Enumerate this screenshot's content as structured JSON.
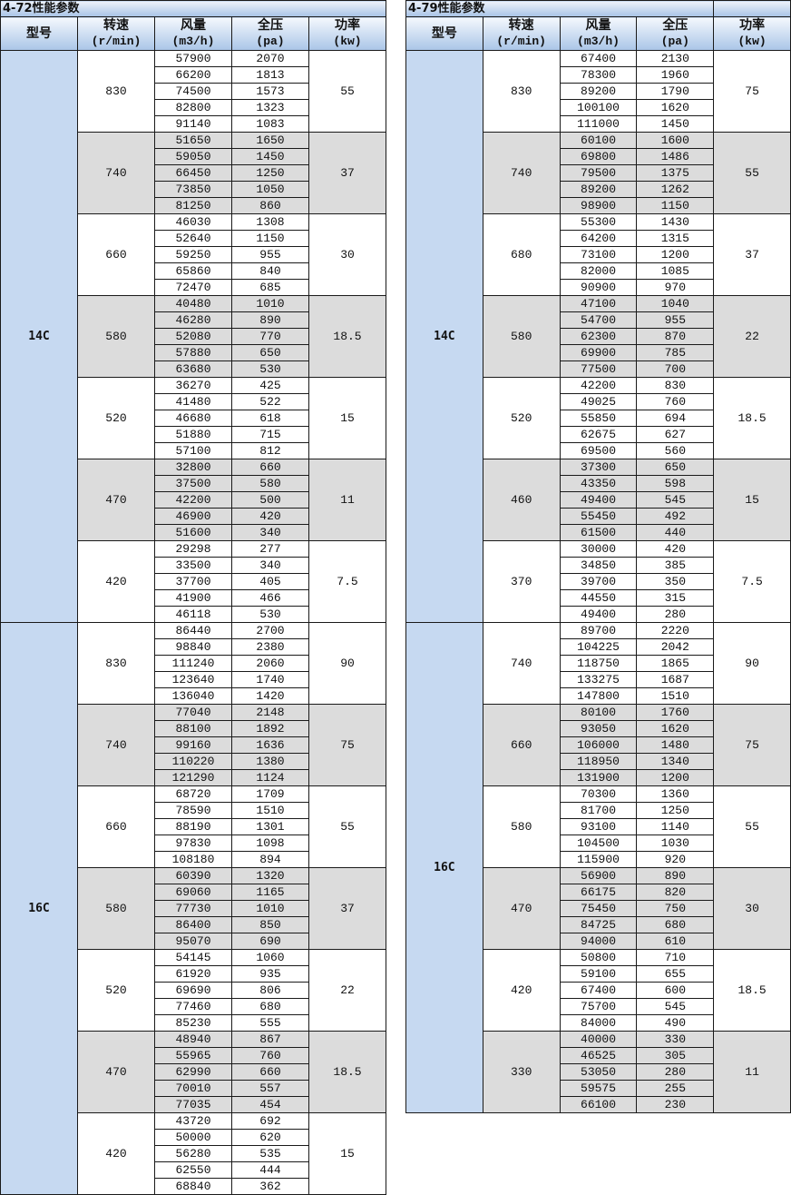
{
  "tables": [
    {
      "title": "4-72性能参数",
      "headers": [
        {
          "label": "型号",
          "unit": ""
        },
        {
          "label": "转速",
          "unit": "(r/min)"
        },
        {
          "label": "风量",
          "unit": "(m3/h)"
        },
        {
          "label": "全压",
          "unit": "(pa)"
        },
        {
          "label": "功率",
          "unit": "(kw)"
        }
      ],
      "models": [
        {
          "model": "14C",
          "groups": [
            {
              "speed": "830",
              "power": "55",
              "rows": [
                [
                  "57900",
                  "2070"
                ],
                [
                  "66200",
                  "1813"
                ],
                [
                  "74500",
                  "1573"
                ],
                [
                  "82800",
                  "1323"
                ],
                [
                  "91140",
                  "1083"
                ]
              ]
            },
            {
              "speed": "740",
              "power": "37",
              "rows": [
                [
                  "51650",
                  "1650"
                ],
                [
                  "59050",
                  "1450"
                ],
                [
                  "66450",
                  "1250"
                ],
                [
                  "73850",
                  "1050"
                ],
                [
                  "81250",
                  "860"
                ]
              ]
            },
            {
              "speed": "660",
              "power": "30",
              "rows": [
                [
                  "46030",
                  "1308"
                ],
                [
                  "52640",
                  "1150"
                ],
                [
                  "59250",
                  "955"
                ],
                [
                  "65860",
                  "840"
                ],
                [
                  "72470",
                  "685"
                ]
              ]
            },
            {
              "speed": "580",
              "power": "18.5",
              "rows": [
                [
                  "40480",
                  "1010"
                ],
                [
                  "46280",
                  "890"
                ],
                [
                  "52080",
                  "770"
                ],
                [
                  "57880",
                  "650"
                ],
                [
                  "63680",
                  "530"
                ]
              ]
            },
            {
              "speed": "520",
              "power": "15",
              "rows": [
                [
                  "36270",
                  "425"
                ],
                [
                  "41480",
                  "522"
                ],
                [
                  "46680",
                  "618"
                ],
                [
                  "51880",
                  "715"
                ],
                [
                  "57100",
                  "812"
                ]
              ]
            },
            {
              "speed": "470",
              "power": "11",
              "rows": [
                [
                  "32800",
                  "660"
                ],
                [
                  "37500",
                  "580"
                ],
                [
                  "42200",
                  "500"
                ],
                [
                  "46900",
                  "420"
                ],
                [
                  "51600",
                  "340"
                ]
              ]
            },
            {
              "speed": "420",
              "power": "7.5",
              "rows": [
                [
                  "29298",
                  "277"
                ],
                [
                  "33500",
                  "340"
                ],
                [
                  "37700",
                  "405"
                ],
                [
                  "41900",
                  "466"
                ],
                [
                  "46118",
                  "530"
                ]
              ]
            }
          ]
        },
        {
          "model": "16C",
          "groups": [
            {
              "speed": "830",
              "power": "90",
              "rows": [
                [
                  "86440",
                  "2700"
                ],
                [
                  "98840",
                  "2380"
                ],
                [
                  "111240",
                  "2060"
                ],
                [
                  "123640",
                  "1740"
                ],
                [
                  "136040",
                  "1420"
                ]
              ]
            },
            {
              "speed": "740",
              "power": "75",
              "rows": [
                [
                  "77040",
                  "2148"
                ],
                [
                  "88100",
                  "1892"
                ],
                [
                  "99160",
                  "1636"
                ],
                [
                  "110220",
                  "1380"
                ],
                [
                  "121290",
                  "1124"
                ]
              ]
            },
            {
              "speed": "660",
              "power": "55",
              "rows": [
                [
                  "68720",
                  "1709"
                ],
                [
                  "78590",
                  "1510"
                ],
                [
                  "88190",
                  "1301"
                ],
                [
                  "97830",
                  "1098"
                ],
                [
                  "108180",
                  "894"
                ]
              ]
            },
            {
              "speed": "580",
              "power": "37",
              "rows": [
                [
                  "60390",
                  "1320"
                ],
                [
                  "69060",
                  "1165"
                ],
                [
                  "77730",
                  "1010"
                ],
                [
                  "86400",
                  "850"
                ],
                [
                  "95070",
                  "690"
                ]
              ]
            },
            {
              "speed": "520",
              "power": "22",
              "rows": [
                [
                  "54145",
                  "1060"
                ],
                [
                  "61920",
                  "935"
                ],
                [
                  "69690",
                  "806"
                ],
                [
                  "77460",
                  "680"
                ],
                [
                  "85230",
                  "555"
                ]
              ]
            },
            {
              "speed": "470",
              "power": "18.5",
              "rows": [
                [
                  "48940",
                  "867"
                ],
                [
                  "55965",
                  "760"
                ],
                [
                  "62990",
                  "660"
                ],
                [
                  "70010",
                  "557"
                ],
                [
                  "77035",
                  "454"
                ]
              ]
            },
            {
              "speed": "420",
              "power": "15",
              "rows": [
                [
                  "43720",
                  "692"
                ],
                [
                  "50000",
                  "620"
                ],
                [
                  "56280",
                  "535"
                ],
                [
                  "62550",
                  "444"
                ],
                [
                  "68840",
                  "362"
                ]
              ]
            }
          ]
        }
      ]
    },
    {
      "title": "4-79性能参数",
      "headers": [
        {
          "label": "型号",
          "unit": ""
        },
        {
          "label": "转速",
          "unit": "(r/min)"
        },
        {
          "label": "风量",
          "unit": "(m3/h)"
        },
        {
          "label": "全压",
          "unit": "(pa)"
        },
        {
          "label": "功率",
          "unit": "(kw)"
        }
      ],
      "models": [
        {
          "model": "14C",
          "groups": [
            {
              "speed": "830",
              "power": "75",
              "rows": [
                [
                  "67400",
                  "2130"
                ],
                [
                  "78300",
                  "1960"
                ],
                [
                  "89200",
                  "1790"
                ],
                [
                  "100100",
                  "1620"
                ],
                [
                  "111000",
                  "1450"
                ]
              ]
            },
            {
              "speed": "740",
              "power": "55",
              "rows": [
                [
                  "60100",
                  "1600"
                ],
                [
                  "69800",
                  "1486"
                ],
                [
                  "79500",
                  "1375"
                ],
                [
                  "89200",
                  "1262"
                ],
                [
                  "98900",
                  "1150"
                ]
              ]
            },
            {
              "speed": "680",
              "power": "37",
              "rows": [
                [
                  "55300",
                  "1430"
                ],
                [
                  "64200",
                  "1315"
                ],
                [
                  "73100",
                  "1200"
                ],
                [
                  "82000",
                  "1085"
                ],
                [
                  "90900",
                  "970"
                ]
              ]
            },
            {
              "speed": "580",
              "power": "22",
              "rows": [
                [
                  "47100",
                  "1040"
                ],
                [
                  "54700",
                  "955"
                ],
                [
                  "62300",
                  "870"
                ],
                [
                  "69900",
                  "785"
                ],
                [
                  "77500",
                  "700"
                ]
              ]
            },
            {
              "speed": "520",
              "power": "18.5",
              "rows": [
                [
                  "42200",
                  "830"
                ],
                [
                  "49025",
                  "760"
                ],
                [
                  "55850",
                  "694"
                ],
                [
                  "62675",
                  "627"
                ],
                [
                  "69500",
                  "560"
                ]
              ]
            },
            {
              "speed": "460",
              "power": "15",
              "rows": [
                [
                  "37300",
                  "650"
                ],
                [
                  "43350",
                  "598"
                ],
                [
                  "49400",
                  "545"
                ],
                [
                  "55450",
                  "492"
                ],
                [
                  "61500",
                  "440"
                ]
              ]
            },
            {
              "speed": "370",
              "power": "7.5",
              "rows": [
                [
                  "30000",
                  "420"
                ],
                [
                  "34850",
                  "385"
                ],
                [
                  "39700",
                  "350"
                ],
                [
                  "44550",
                  "315"
                ],
                [
                  "49400",
                  "280"
                ]
              ]
            }
          ]
        },
        {
          "model": "16C",
          "groups": [
            {
              "speed": "740",
              "power": "90",
              "rows": [
                [
                  "89700",
                  "2220"
                ],
                [
                  "104225",
                  "2042"
                ],
                [
                  "118750",
                  "1865"
                ],
                [
                  "133275",
                  "1687"
                ],
                [
                  "147800",
                  "1510"
                ]
              ]
            },
            {
              "speed": "660",
              "power": "75",
              "rows": [
                [
                  "80100",
                  "1760"
                ],
                [
                  "93050",
                  "1620"
                ],
                [
                  "106000",
                  "1480"
                ],
                [
                  "118950",
                  "1340"
                ],
                [
                  "131900",
                  "1200"
                ]
              ]
            },
            {
              "speed": "580",
              "power": "55",
              "rows": [
                [
                  "70300",
                  "1360"
                ],
                [
                  "81700",
                  "1250"
                ],
                [
                  "93100",
                  "1140"
                ],
                [
                  "104500",
                  "1030"
                ],
                [
                  "115900",
                  "920"
                ]
              ]
            },
            {
              "speed": "470",
              "power": "30",
              "rows": [
                [
                  "56900",
                  "890"
                ],
                [
                  "66175",
                  "820"
                ],
                [
                  "75450",
                  "750"
                ],
                [
                  "84725",
                  "680"
                ],
                [
                  "94000",
                  "610"
                ]
              ]
            },
            {
              "speed": "420",
              "power": "18.5",
              "rows": [
                [
                  "50800",
                  "710"
                ],
                [
                  "59100",
                  "655"
                ],
                [
                  "67400",
                  "600"
                ],
                [
                  "75700",
                  "545"
                ],
                [
                  "84000",
                  "490"
                ]
              ]
            },
            {
              "speed": "330",
              "power": "11",
              "rows": [
                [
                  "40000",
                  "330"
                ],
                [
                  "46525",
                  "305"
                ],
                [
                  "53050",
                  "280"
                ],
                [
                  "59575",
                  "255"
                ],
                [
                  "66100",
                  "230"
                ]
              ]
            }
          ]
        }
      ]
    }
  ],
  "colors": {
    "model_cell": "#c6d9f1",
    "alt_group": "#dcdcdc",
    "header_bottom": "#a8c3e6",
    "border": "#1a1a1a"
  }
}
